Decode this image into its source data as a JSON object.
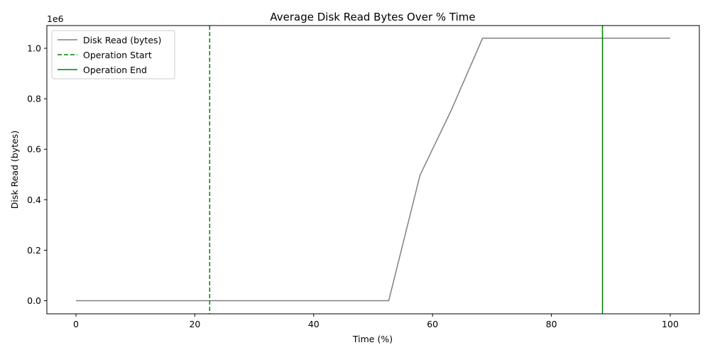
{
  "chart_data": {
    "type": "line",
    "title": "Average Disk Read Bytes Over % Time",
    "xlabel": "Time (%)",
    "ylabel": "Disk Read (bytes)",
    "y_offset_label": "1e6",
    "xlim": [
      -4.9,
      104.9
    ],
    "ylim": [
      -0.052,
      1.09
    ],
    "y_scale_factor": 1000000,
    "x_ticks": [
      0,
      20,
      40,
      60,
      80,
      100
    ],
    "x_tick_labels": [
      "0",
      "20",
      "40",
      "60",
      "80",
      "100"
    ],
    "y_ticks": [
      0.0,
      0.2,
      0.4,
      0.6,
      0.8,
      1.0
    ],
    "y_tick_labels": [
      "0.0",
      "0.2",
      "0.4",
      "0.6",
      "0.8",
      "1.0"
    ],
    "grid": false,
    "legend_position": "upper-left",
    "series": [
      {
        "name": "Disk Read (bytes)",
        "color": "#808080",
        "style": "solid",
        "x": [
          0,
          5.26,
          10.53,
          15.79,
          21.05,
          26.32,
          31.58,
          36.84,
          42.11,
          47.37,
          52.63,
          57.89,
          63.16,
          68.42,
          73.68,
          78.95,
          84.21,
          89.47,
          94.74,
          100
        ],
        "y": [
          0,
          0,
          0,
          0,
          0,
          0,
          0,
          0,
          0,
          0,
          0,
          0.497,
          0.755,
          1.04,
          1.04,
          1.04,
          1.04,
          1.04,
          1.04,
          1.04
        ]
      }
    ],
    "vlines": [
      {
        "name": "Operation Start",
        "x": 22.5,
        "color": "#008000",
        "style": "dashed"
      },
      {
        "name": "Operation End",
        "x": 88.6,
        "color": "#008000",
        "style": "solid"
      }
    ]
  }
}
